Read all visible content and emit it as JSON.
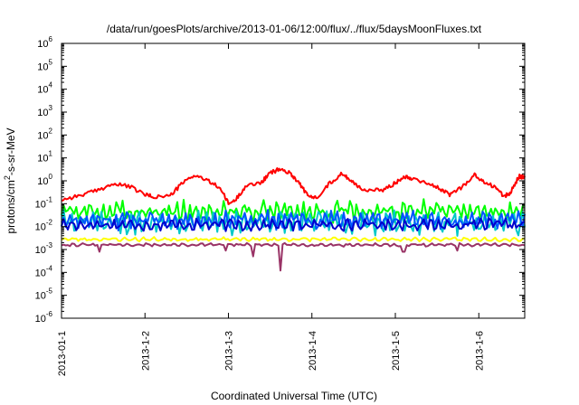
{
  "chart_data": {
    "type": "line",
    "title": "/data/run/goesPlots/archive/2013-01-06/12:00/flux/../flux/5daysMoonFluxes.txt",
    "xlabel": "Coordinated Universal Time (UTC)",
    "ylabel_parts": {
      "pre": "protons/cm",
      "sup": "2",
      "post": "-s-sr-MeV"
    },
    "ylim": [
      1e-06,
      1000000.0
    ],
    "yscale": "log",
    "y_tick_exponents": [
      -6,
      -5,
      -4,
      -3,
      -2,
      -1,
      0,
      1,
      2,
      3,
      4,
      5,
      6
    ],
    "y_tick_base": "10",
    "x_range_days": [
      0,
      5.55
    ],
    "x_ticks": [
      {
        "label": "2013-01-1",
        "day": 0
      },
      {
        "label": "2013-1-2",
        "day": 1
      },
      {
        "label": "2013-1-3",
        "day": 2
      },
      {
        "label": "2013-1-4",
        "day": 3
      },
      {
        "label": "2013-1-5",
        "day": 4
      },
      {
        "label": "2013-1-6",
        "day": 5
      }
    ],
    "grid": false,
    "legend": "none",
    "series": [
      {
        "color": "#ff0000",
        "points": [
          [
            0.0,
            0.15
          ],
          [
            0.2,
            0.22
          ],
          [
            0.4,
            0.35
          ],
          [
            0.6,
            0.7
          ],
          [
            0.8,
            0.6
          ],
          [
            1.0,
            0.25
          ],
          [
            1.1,
            0.2
          ],
          [
            1.3,
            0.22
          ],
          [
            1.45,
            0.8
          ],
          [
            1.6,
            1.8
          ],
          [
            1.75,
            1.0
          ],
          [
            1.9,
            0.5
          ],
          [
            2.0,
            0.1
          ],
          [
            2.08,
            0.14
          ],
          [
            2.2,
            0.55
          ],
          [
            2.4,
            0.9
          ],
          [
            2.5,
            2.2
          ],
          [
            2.62,
            3.3
          ],
          [
            2.75,
            2.0
          ],
          [
            2.85,
            0.8
          ],
          [
            2.95,
            0.22
          ],
          [
            3.05,
            0.18
          ],
          [
            3.2,
            0.7
          ],
          [
            3.35,
            2.0
          ],
          [
            3.45,
            1.2
          ],
          [
            3.55,
            0.6
          ],
          [
            3.65,
            0.35
          ],
          [
            3.85,
            0.4
          ],
          [
            4.0,
            0.8
          ],
          [
            4.1,
            1.6
          ],
          [
            4.2,
            1.3
          ],
          [
            4.4,
            0.8
          ],
          [
            4.55,
            0.4
          ],
          [
            4.65,
            0.25
          ],
          [
            4.8,
            0.55
          ],
          [
            4.95,
            1.8
          ],
          [
            5.05,
            0.9
          ],
          [
            5.2,
            0.55
          ],
          [
            5.3,
            0.2
          ],
          [
            5.38,
            0.3
          ],
          [
            5.48,
            1.6
          ],
          [
            5.55,
            1.4
          ]
        ]
      },
      {
        "color": "#00ff00",
        "base": 0.045,
        "amp": 0.55,
        "seed": 3,
        "period": 0.08
      },
      {
        "color": "#00c8c8",
        "base": 0.015,
        "amp": 0.6,
        "seed": 7,
        "period": 0.09
      },
      {
        "color": "#0055ff",
        "base": 0.02,
        "amp": 0.5,
        "seed": 11,
        "period": 0.07
      },
      {
        "color": "#0000cc",
        "base": 0.012,
        "amp": 0.3,
        "seed": 17,
        "period": 0.1
      },
      {
        "color": "#ffff00",
        "base": 0.0028,
        "amp": 0.1,
        "seed": 23,
        "period": 0.12
      },
      {
        "color": "#993366",
        "base": 0.0016,
        "amp": 0.08,
        "seed": 31,
        "period": 0.11,
        "dips": [
          [
            2.62,
            0.00012
          ],
          [
            0.45,
            0.0008
          ],
          [
            2.3,
            0.0005
          ],
          [
            1.97,
            0.0009
          ],
          [
            4.1,
            0.0008
          ],
          [
            4.75,
            0.0009
          ]
        ]
      }
    ]
  }
}
